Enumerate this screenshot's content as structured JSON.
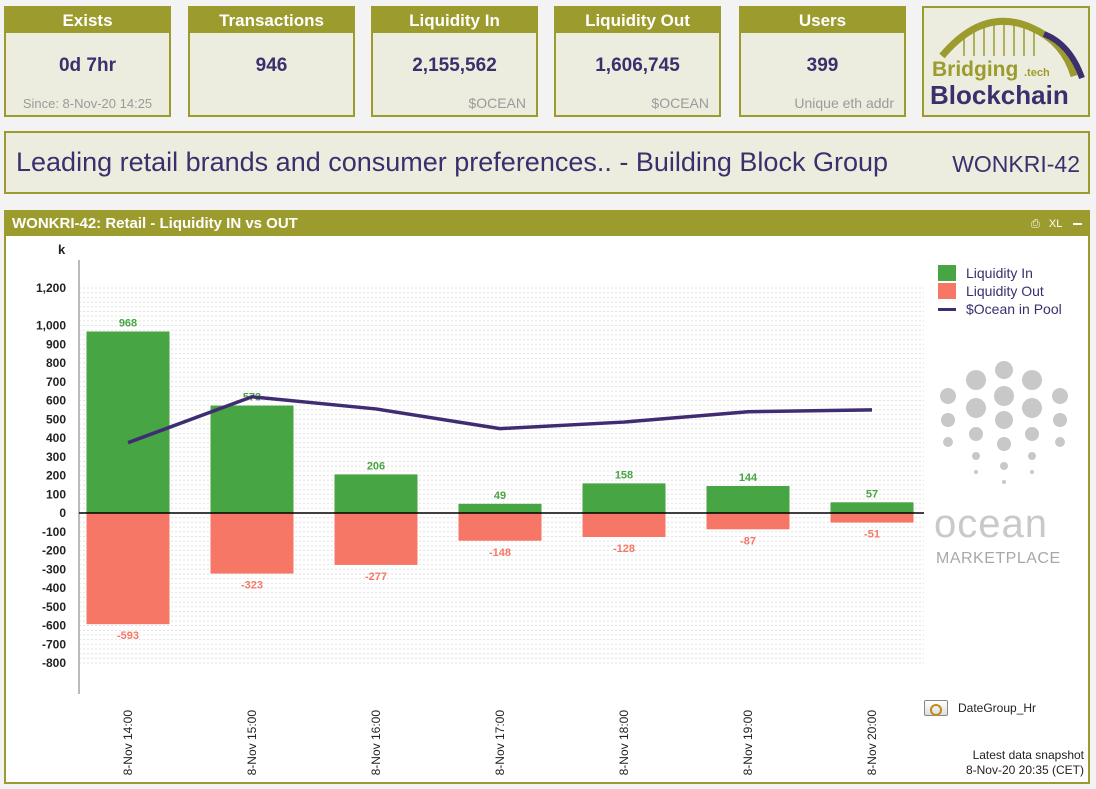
{
  "kpis": [
    {
      "id": "exists",
      "label": "Exists",
      "value": "0d 7hr",
      "sub": "Since: 8-Nov-20 14:25"
    },
    {
      "id": "transactions",
      "label": "Transactions",
      "value": "946",
      "sub": ""
    },
    {
      "id": "liquidity_in",
      "label": "Liquidity In",
      "value": "2,155,562",
      "sub": "$OCEAN"
    },
    {
      "id": "liquidity_out",
      "label": "Liquidity Out",
      "value": "1,606,745",
      "sub": "$OCEAN"
    },
    {
      "id": "users",
      "label": "Users",
      "value": "399",
      "sub": "Unique eth addr"
    }
  ],
  "logo": {
    "line1": "Bridging",
    "line1_suffix": ".tech",
    "line2": "Blockchain"
  },
  "title": {
    "text": "Leading retail brands and consumer preferences.. - Building Block Group",
    "code": "WONKRI-42"
  },
  "panel": {
    "title": "WONKRI-42: Retail - Liquidity IN vs OUT",
    "tool_xl": "XL"
  },
  "chart_data": {
    "type": "bar",
    "unit_label": "k",
    "categories": [
      "8-Nov 14:00",
      "8-Nov 15:00",
      "8-Nov 16:00",
      "8-Nov 17:00",
      "8-Nov 18:00",
      "8-Nov 19:00",
      "8-Nov 20:00"
    ],
    "series": [
      {
        "name": "Liquidity In",
        "color": "#47a543",
        "values": [
          968,
          573,
          206,
          49,
          158,
          144,
          57
        ]
      },
      {
        "name": "Liquidity Out",
        "color": "#f77766",
        "values": [
          -593,
          -323,
          -277,
          -148,
          -128,
          -87,
          -51
        ]
      },
      {
        "name": "$Ocean in Pool",
        "color": "#3f2c73",
        "type": "line",
        "values": [
          375,
          620,
          555,
          450,
          485,
          540,
          550
        ]
      }
    ],
    "ylim": [
      -800,
      1200
    ],
    "yticks": [
      1200,
      1000,
      900,
      800,
      700,
      600,
      500,
      400,
      300,
      200,
      100,
      0,
      -100,
      -200,
      -300,
      -400,
      -500,
      -600,
      -700,
      -800
    ],
    "ytick_labels": [
      "1,200",
      "1,000",
      "900",
      "800",
      "700",
      "600",
      "500",
      "400",
      "300",
      "200",
      "100",
      "0",
      "-100",
      "-200",
      "-300",
      "-400",
      "-500",
      "-600",
      "-700",
      "-800"
    ],
    "legend_position": "top-right",
    "grid": true
  },
  "ocean_brand": {
    "word": "ocean",
    "sub": "MARKETPLACE"
  },
  "dimension": {
    "label": "DateGroup_Hr"
  },
  "snapshot": {
    "line1": "Latest data snapshot",
    "line2": "8-Nov-20 20:35 (CET)"
  }
}
